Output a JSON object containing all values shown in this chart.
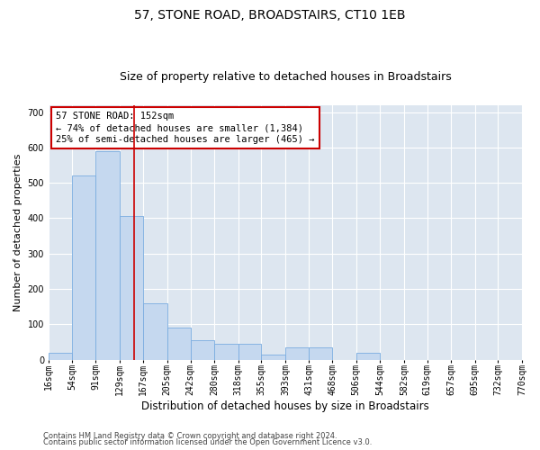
{
  "title": "57, STONE ROAD, BROADSTAIRS, CT10 1EB",
  "subtitle": "Size of property relative to detached houses in Broadstairs",
  "xlabel": "Distribution of detached houses by size in Broadstairs",
  "ylabel": "Number of detached properties",
  "footnote1": "Contains HM Land Registry data © Crown copyright and database right 2024.",
  "footnote2": "Contains public sector information licensed under the Open Government Licence v3.0.",
  "annotation_line1": "57 STONE ROAD: 152sqm",
  "annotation_line2": "← 74% of detached houses are smaller (1,384)",
  "annotation_line3": "25% of semi-detached houses are larger (465) →",
  "property_size": 152,
  "bar_color": "#c5d8ef",
  "bar_edge_color": "#7aace0",
  "redline_color": "#cc0000",
  "background_color": "#dde6f0",
  "grid_color": "#ffffff",
  "bin_edges": [
    16,
    54,
    91,
    129,
    167,
    205,
    242,
    280,
    318,
    355,
    393,
    431,
    468,
    506,
    544,
    582,
    619,
    657,
    695,
    732,
    770
  ],
  "bar_values": [
    20,
    520,
    590,
    405,
    160,
    90,
    55,
    45,
    45,
    15,
    35,
    35,
    0,
    20,
    0,
    0,
    0,
    0,
    0,
    0
  ],
  "ylim": [
    0,
    720
  ],
  "yticks": [
    0,
    100,
    200,
    300,
    400,
    500,
    600,
    700
  ],
  "title_fontsize": 10,
  "subtitle_fontsize": 9,
  "tick_label_fontsize": 7,
  "ylabel_fontsize": 8,
  "xlabel_fontsize": 8.5,
  "annotation_fontsize": 7.5,
  "footnote_fontsize": 6
}
